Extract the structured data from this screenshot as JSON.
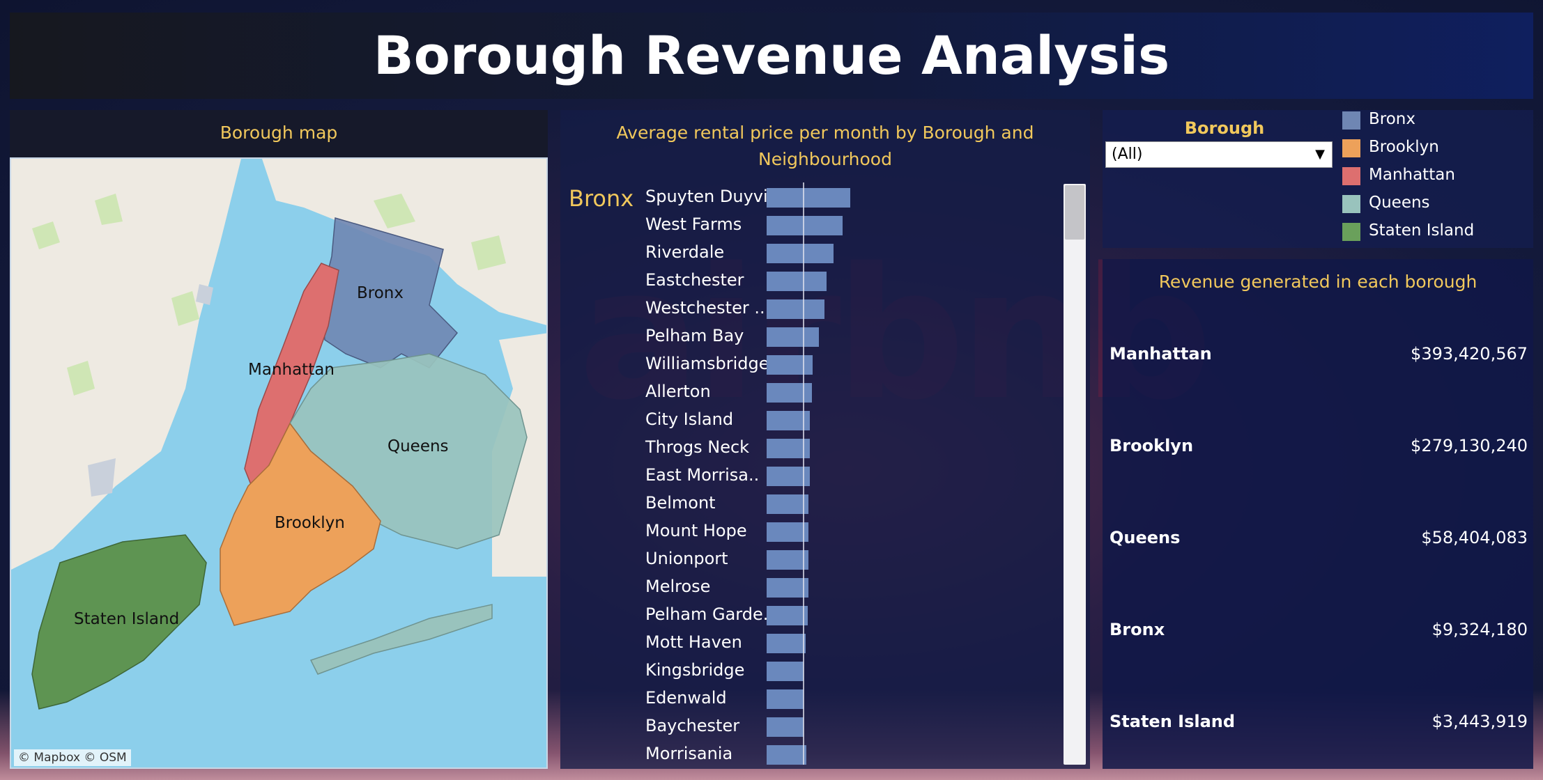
{
  "title": "Borough Revenue Analysis",
  "map": {
    "title": "Borough map",
    "labels": {
      "bronx": "Bronx",
      "manhattan": "Manhattan",
      "queens": "Queens",
      "brooklyn": "Brooklyn",
      "staten_island": "Staten Island"
    },
    "attribution": "© Mapbox  © OSM"
  },
  "bar_chart": {
    "title": "Average rental price per month by Borough and Neighbourhood",
    "group": "Bronx",
    "rows": [
      {
        "label": "Spuyten Duyvil"
      },
      {
        "label": "West Farms"
      },
      {
        "label": "Riverdale"
      },
      {
        "label": "Eastchester"
      },
      {
        "label": "Westchester .."
      },
      {
        "label": "Pelham Bay"
      },
      {
        "label": "Williamsbridge"
      },
      {
        "label": "Allerton"
      },
      {
        "label": "City Island"
      },
      {
        "label": "Throgs Neck"
      },
      {
        "label": "East Morrisa.."
      },
      {
        "label": "Belmont"
      },
      {
        "label": "Mount Hope"
      },
      {
        "label": "Unionport"
      },
      {
        "label": "Melrose"
      },
      {
        "label": "Pelham Garde.."
      },
      {
        "label": "Mott Haven"
      },
      {
        "label": "Kingsbridge"
      },
      {
        "label": "Edenwald"
      },
      {
        "label": "Baychester"
      },
      {
        "label": "Morrisania"
      }
    ]
  },
  "chart_data": {
    "type": "bar",
    "orientation": "horizontal",
    "title": "Average rental price per month by Borough and Neighbourhood",
    "categories": [
      "Spuyten Duyvil",
      "West Farms",
      "Riverdale",
      "Eastchester",
      "Westchester ..",
      "Pelham Bay",
      "Williamsbridge",
      "Allerton",
      "City Island",
      "Throgs Neck",
      "East Morrisa..",
      "Belmont",
      "Mount Hope",
      "Unionport",
      "Melrose",
      "Pelham Garde..",
      "Mott Haven",
      "Kingsbridge",
      "Edenwald",
      "Baychester",
      "Morrisania"
    ],
    "values": [
      92,
      84,
      74,
      66,
      64,
      58,
      51,
      50,
      48,
      48,
      48,
      46,
      46,
      46,
      46,
      45,
      43,
      41,
      41,
      41,
      44
    ],
    "xlim": [
      0,
      100
    ],
    "reference_line": 40,
    "grid": false
  },
  "filter": {
    "title": "Borough",
    "selected": "(All)",
    "caret": "▼"
  },
  "legend": [
    {
      "label": "Bronx",
      "color": "#6f86b3"
    },
    {
      "label": "Brooklyn",
      "color": "#eda15a"
    },
    {
      "label": "Manhattan",
      "color": "#dd6f6f"
    },
    {
      "label": "Queens",
      "color": "#99c3bd"
    },
    {
      "label": "Staten Island",
      "color": "#6aa05b"
    }
  ],
  "revenue": {
    "title": "Revenue generated in each borough",
    "rows": [
      {
        "name": "Manhattan",
        "amount": "$393,420,567"
      },
      {
        "name": "Brooklyn",
        "amount": "$279,130,240"
      },
      {
        "name": "Queens",
        "amount": "$58,404,083"
      },
      {
        "name": "Bronx",
        "amount": "$9,324,180"
      },
      {
        "name": "Staten Island",
        "amount": "$3,443,919"
      }
    ]
  }
}
